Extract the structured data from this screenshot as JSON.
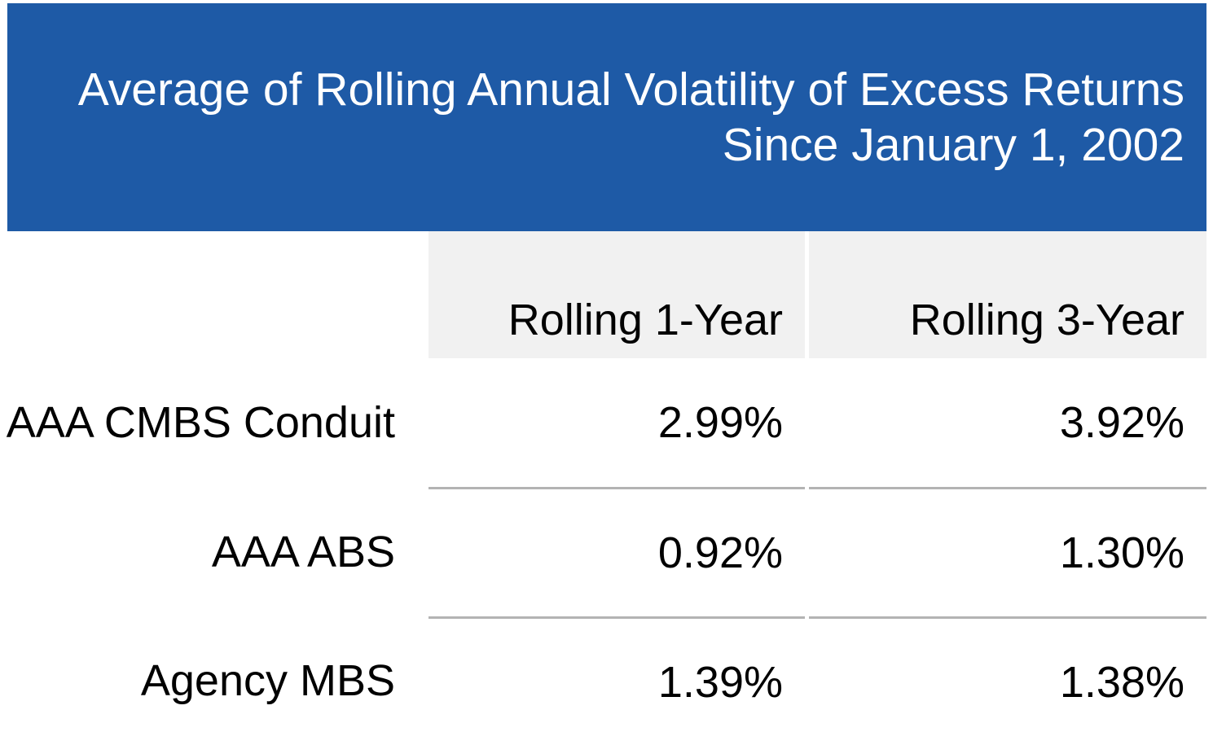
{
  "title": {
    "line1": "Average of Rolling Annual Volatility of Excess Returns",
    "line2": "Since January 1, 2002"
  },
  "table": {
    "column_headers": [
      "Rolling 1-Year",
      "Rolling 3-Year"
    ],
    "rows": [
      {
        "label": "AAA CMBS Conduit",
        "values": [
          "2.99%",
          "3.92%"
        ]
      },
      {
        "label": "AAA ABS",
        "values": [
          "0.92%",
          "1.30%"
        ]
      },
      {
        "label": "Agency MBS",
        "values": [
          "1.39%",
          "1.38%"
        ]
      }
    ]
  },
  "colors": {
    "banner_blue": "#1e5aa6",
    "header_gray": "#f1f1f1",
    "separator_gray": "#b3b3b3",
    "title_text": "#ffffff",
    "body_text": "#000000"
  },
  "chart_data": {
    "type": "table",
    "title": "Average of Rolling Annual Volatility of Excess Returns Since January 1, 2002",
    "columns": [
      "",
      "Rolling 1-Year",
      "Rolling 3-Year"
    ],
    "rows": [
      [
        "AAA CMBS Conduit",
        "2.99%",
        "3.92%"
      ],
      [
        "AAA ABS",
        "0.92%",
        "1.30%"
      ],
      [
        "Agency MBS",
        "1.39%",
        "1.38%"
      ]
    ],
    "values_percent": {
      "categories": [
        "AAA CMBS Conduit",
        "AAA ABS",
        "Agency MBS"
      ],
      "rolling_1_year": [
        2.99,
        0.92,
        1.39
      ],
      "rolling_3_year": [
        3.92,
        1.3,
        1.38
      ]
    }
  }
}
